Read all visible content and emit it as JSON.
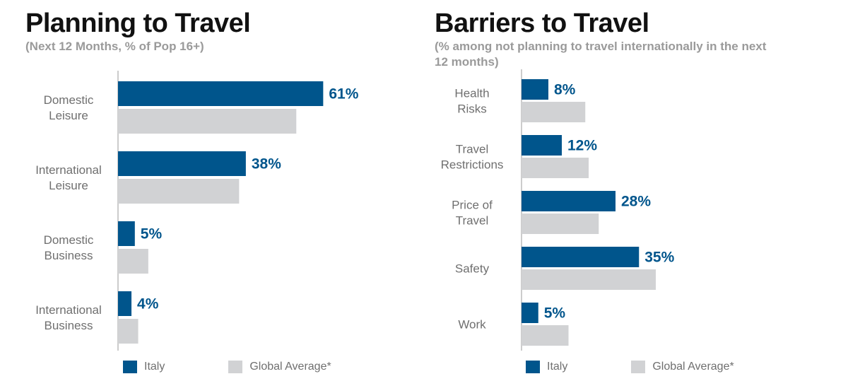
{
  "colors": {
    "italy": "#00558c",
    "global": "#d1d2d4",
    "axis": "#9a9a9a",
    "label": "#6f6f6f"
  },
  "legend": {
    "italy": "Italy",
    "global": "Global Average*"
  },
  "chart_data": [
    {
      "type": "bar",
      "orientation": "horizontal",
      "title": "Planning to Travel",
      "subtitle": "(Next 12 Months, % of Pop 16+)",
      "categories": [
        [
          "Domestic",
          "Leisure"
        ],
        [
          "International",
          "Leisure"
        ],
        [
          "Domestic",
          "Business"
        ],
        [
          "International",
          "Business"
        ]
      ],
      "series": [
        {
          "name": "Italy",
          "values": [
            61,
            38,
            5,
            4
          ],
          "labels": [
            "61%",
            "38%",
            "5%",
            "4%"
          ]
        },
        {
          "name": "Global Average*",
          "values": [
            53,
            36,
            9,
            6
          ]
        }
      ],
      "xlim": [
        0,
        65
      ],
      "grid": false,
      "legend_position": "bottom"
    },
    {
      "type": "bar",
      "orientation": "horizontal",
      "title": "Barriers to Travel",
      "subtitle": "(% among not planning to travel internationally in the next 12 months)",
      "categories": [
        [
          "Health",
          "Risks"
        ],
        [
          "Travel",
          "Restrictions"
        ],
        [
          "Price of",
          "Travel"
        ],
        [
          "Safety"
        ],
        [
          "Work"
        ]
      ],
      "series": [
        {
          "name": "Italy",
          "values": [
            8,
            12,
            28,
            35,
            5
          ],
          "labels": [
            "8%",
            "12%",
            "28%",
            "35%",
            "5%"
          ]
        },
        {
          "name": "Global Average*",
          "values": [
            19,
            20,
            23,
            40,
            14
          ]
        }
      ],
      "xlim": [
        0,
        40
      ],
      "grid": false,
      "legend_position": "bottom"
    }
  ]
}
